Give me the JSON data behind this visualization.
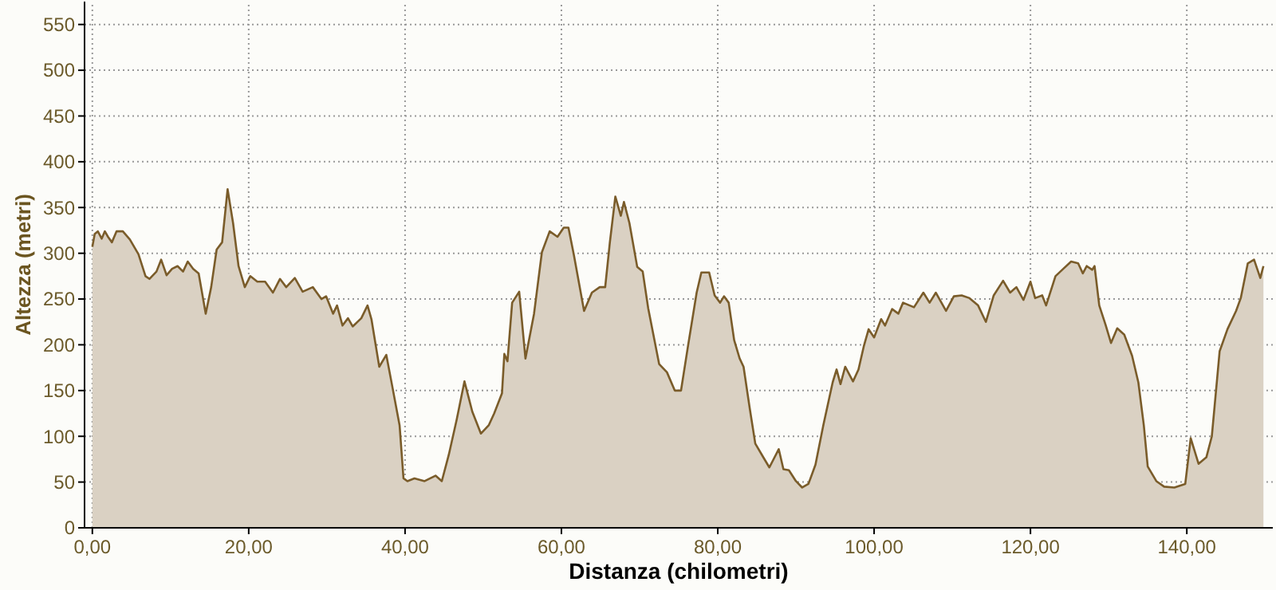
{
  "chart_data": {
    "type": "area",
    "xlabel": "Distanza (chilometri)",
    "ylabel": "Altezza (metri)",
    "xlim": [
      -1,
      151
    ],
    "ylim": [
      0,
      575
    ],
    "xticks": [
      {
        "value": 0,
        "label": "0,00"
      },
      {
        "value": 20,
        "label": "20,00"
      },
      {
        "value": 40,
        "label": "40,00"
      },
      {
        "value": 60,
        "label": "60,00"
      },
      {
        "value": 80,
        "label": "80,00"
      },
      {
        "value": 100,
        "label": "100,00"
      },
      {
        "value": 120,
        "label": "120,00"
      },
      {
        "value": 140,
        "label": "140,00"
      }
    ],
    "yticks": [
      0,
      50,
      100,
      150,
      200,
      250,
      300,
      350,
      400,
      450,
      500,
      550
    ],
    "grid": true,
    "marker": "none",
    "line_style": "solid",
    "series": [
      {
        "color": "#7a5c2a",
        "x": [
          0,
          0.3,
          0.7,
          1.2,
          1.6,
          2.0,
          2.5,
          3.1,
          3.9,
          4.8,
          5.9,
          6.8,
          7.3,
          8.2,
          8.8,
          9.5,
          10.2,
          10.9,
          11.6,
          12.2,
          12.9,
          13.6,
          14.5,
          15.2,
          15.9,
          16.6,
          17.3,
          18.0,
          18.7,
          19.5,
          20.2,
          21.1,
          22.1,
          23.1,
          24.0,
          24.8,
          25.9,
          26.9,
          28.2,
          29.3,
          29.9,
          30.8,
          31.3,
          32.0,
          32.7,
          33.3,
          34.4,
          35.2,
          35.7,
          36.7,
          37.6,
          38.4,
          39.3,
          39.8,
          40.3,
          41.2,
          42.5,
          43.9,
          44.7,
          45.6,
          46.6,
          47.6,
          48.6,
          49.7,
          50.7,
          51.4,
          52.4,
          52.7,
          53.1,
          53.7,
          54.6,
          55.4,
          56.5,
          57.5,
          58.5,
          59.5,
          60.3,
          60.9,
          61.6,
          62.9,
          63.9,
          64.9,
          65.6,
          66.2,
          66.9,
          67.6,
          68.0,
          68.7,
          69.7,
          70.4,
          71.1,
          72.5,
          73.5,
          74.5,
          75.3,
          76.2,
          77.3,
          77.9,
          78.9,
          79.6,
          80.3,
          80.8,
          81.4,
          82.1,
          82.8,
          83.3,
          84.1,
          84.8,
          85.9,
          86.6,
          87.8,
          88.4,
          89.1,
          90.0,
          90.8,
          91.6,
          92.5,
          93.5,
          94.7,
          95.2,
          95.7,
          96.3,
          97.3,
          98.0,
          98.7,
          99.3,
          100.0,
          100.9,
          101.4,
          102.3,
          103.1,
          103.7,
          105.1,
          106.3,
          107.1,
          107.9,
          109.2,
          110.2,
          111.2,
          112.2,
          113.3,
          114.3,
          115.3,
          116.5,
          117.4,
          118.2,
          119.1,
          120.0,
          120.6,
          121.5,
          122.0,
          123.2,
          124.2,
          125.2,
          126.1,
          126.7,
          127.2,
          127.9,
          128.2,
          128.8,
          129.6,
          130.3,
          131.1,
          132.0,
          133.0,
          133.8,
          134.5,
          135.0,
          136.1,
          137.1,
          138.4,
          139.8,
          140.5,
          141.5,
          142.5,
          143.2,
          144.2,
          145.2,
          146.3,
          146.9,
          147.8,
          148.6,
          149.4,
          149.8
        ],
        "values": [
          307,
          321,
          324,
          316,
          324,
          318,
          312,
          324,
          324,
          315,
          299,
          275,
          272,
          280,
          293,
          276,
          283,
          286,
          280,
          291,
          283,
          278,
          234,
          263,
          304,
          312,
          370,
          333,
          286,
          263,
          275,
          269,
          269,
          257,
          272,
          263,
          273,
          258,
          263,
          250,
          253,
          234,
          243,
          221,
          229,
          220,
          229,
          243,
          228,
          176,
          189,
          153,
          112,
          54,
          51,
          54,
          51,
          57,
          51,
          80,
          118,
          160,
          127,
          103,
          112,
          125,
          147,
          190,
          182,
          246,
          258,
          185,
          234,
          301,
          324,
          318,
          328,
          328,
          298,
          237,
          257,
          263,
          263,
          312,
          362,
          341,
          356,
          333,
          285,
          280,
          240,
          179,
          170,
          150,
          150,
          199,
          257,
          279,
          279,
          254,
          246,
          253,
          246,
          205,
          185,
          176,
          130,
          92,
          76,
          66,
          86,
          64,
          63,
          51,
          44,
          48,
          69,
          112,
          159,
          173,
          157,
          176,
          160,
          173,
          199,
          217,
          208,
          228,
          221,
          239,
          234,
          246,
          241,
          257,
          246,
          257,
          237,
          253,
          254,
          251,
          243,
          225,
          254,
          270,
          257,
          263,
          249,
          269,
          251,
          254,
          243,
          275,
          283,
          291,
          289,
          278,
          286,
          282,
          286,
          243,
          222,
          202,
          218,
          211,
          188,
          159,
          112,
          67,
          51,
          45,
          44,
          48,
          98,
          70,
          77,
          100,
          193,
          217,
          237,
          251,
          289,
          293,
          273,
          286
        ]
      }
    ]
  }
}
